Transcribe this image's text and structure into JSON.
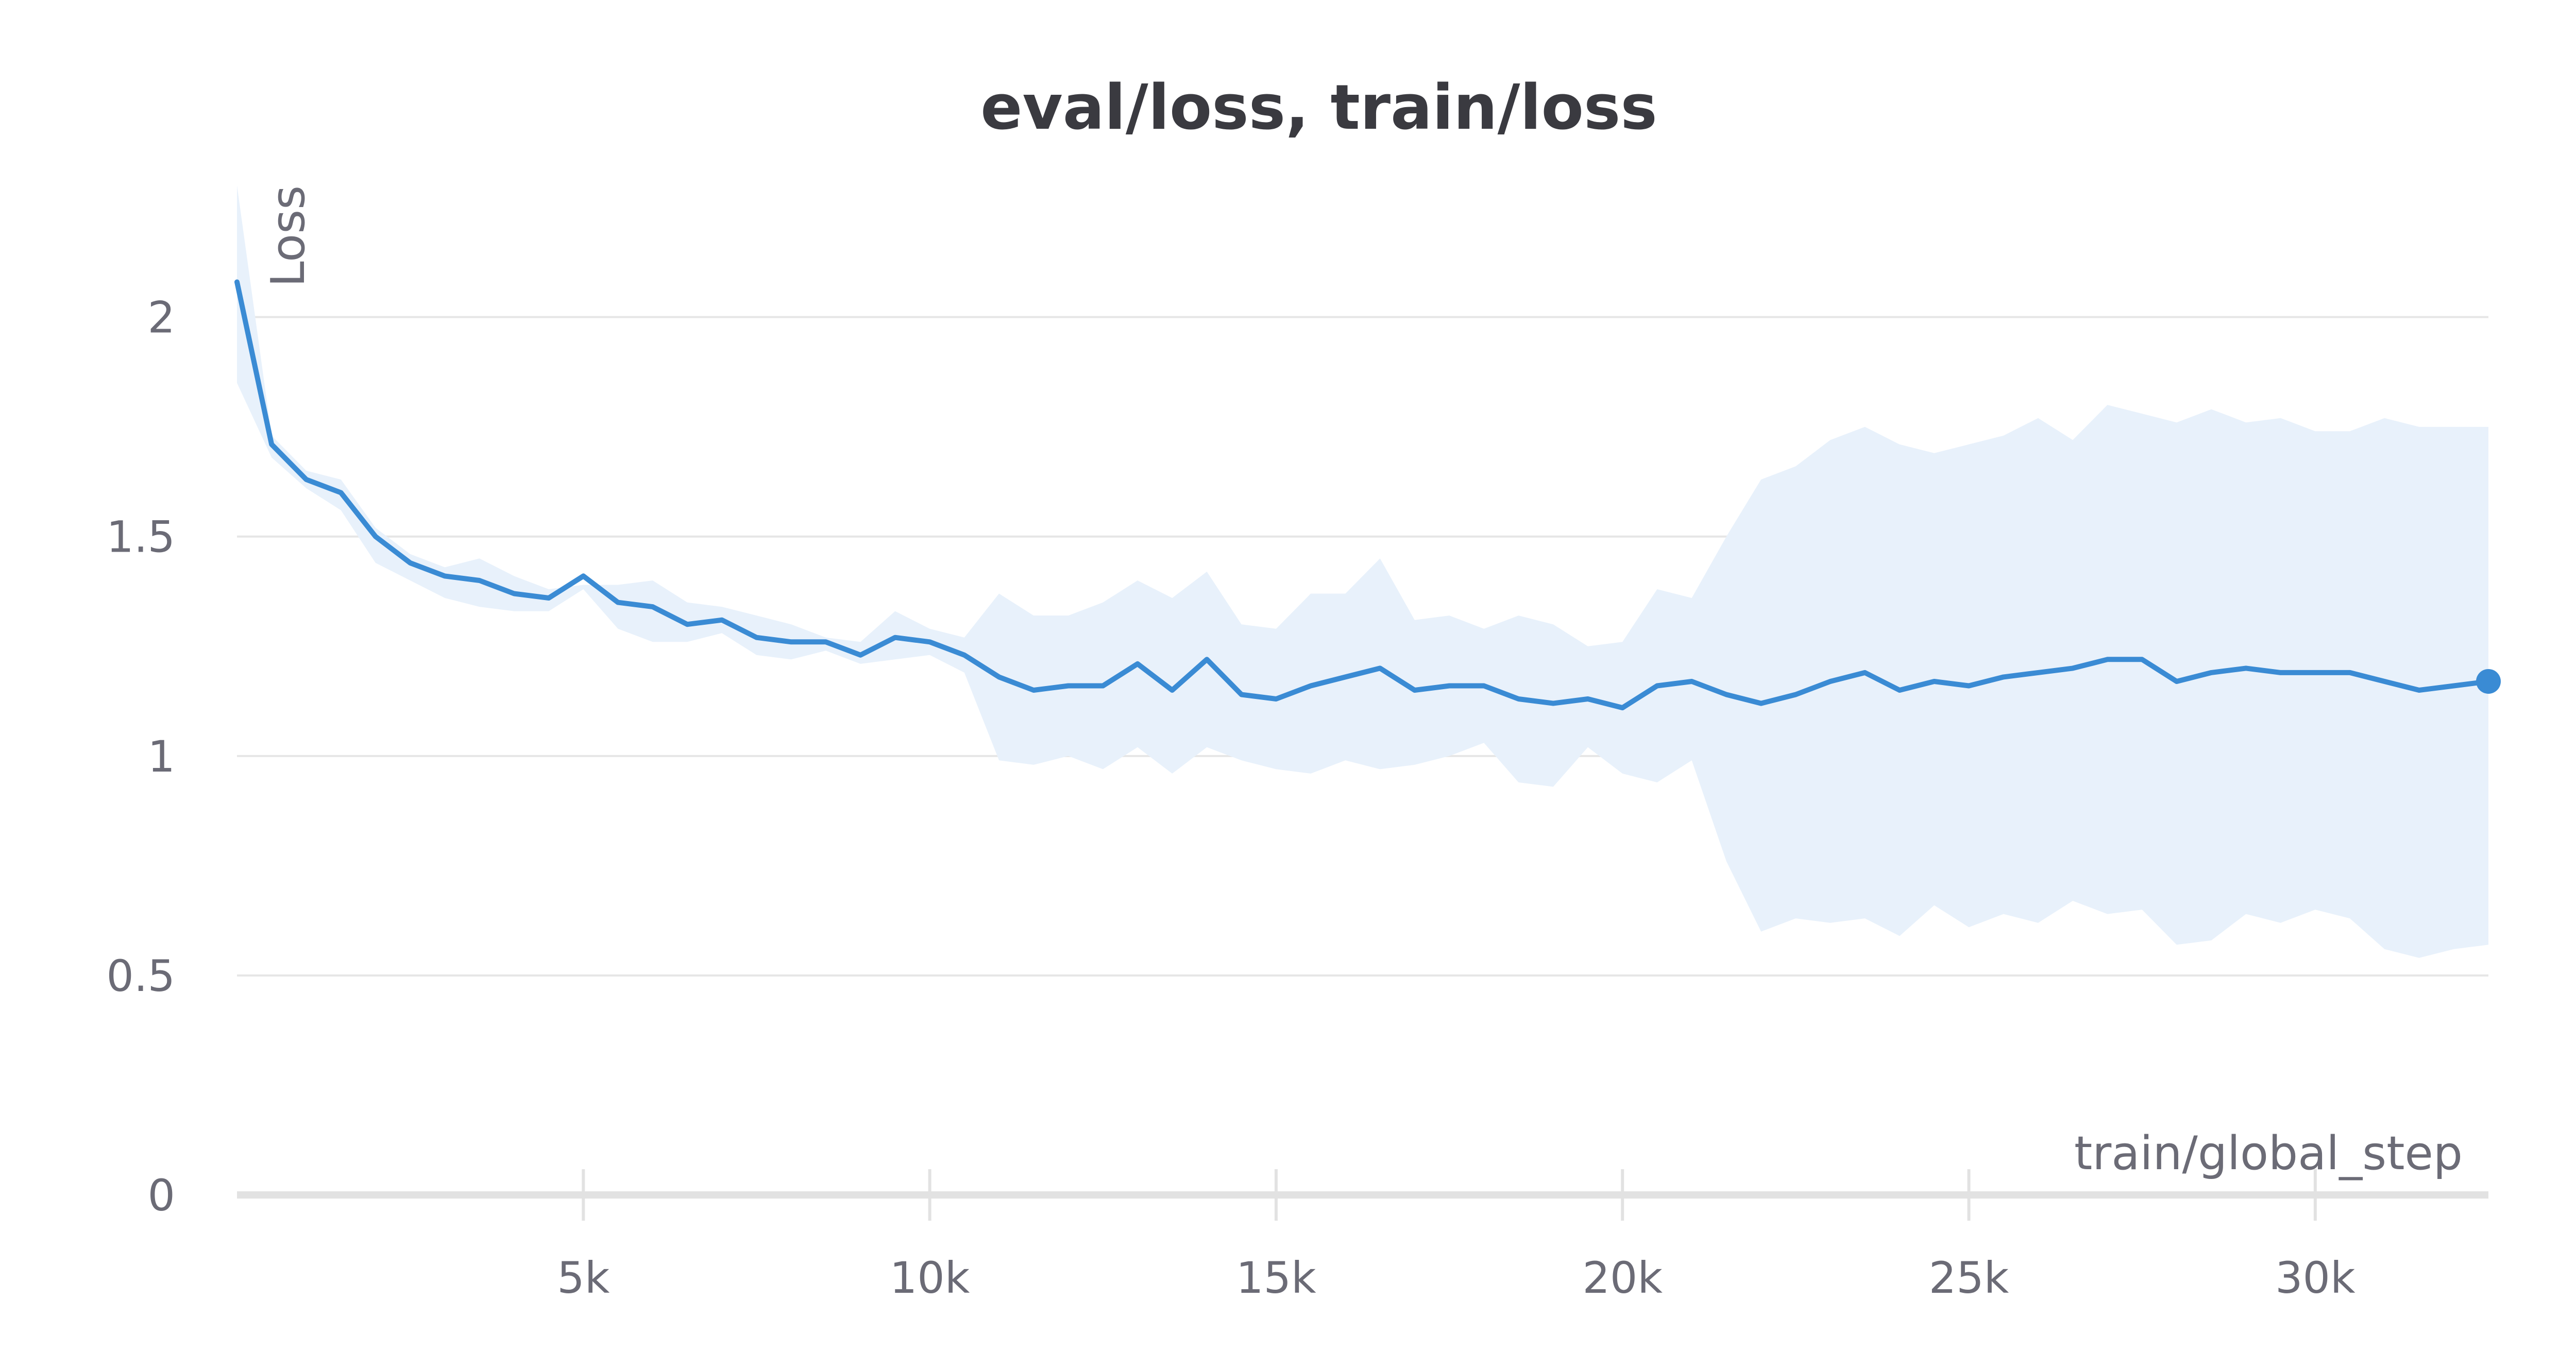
{
  "chart_data": {
    "type": "line",
    "title": "eval/loss, train/loss",
    "xlabel": "train/global_step",
    "ylabel": "Loss",
    "xlim": [
      0,
      32500
    ],
    "ylim": [
      0,
      2.3
    ],
    "x_ticks": [
      5000,
      10000,
      15000,
      20000,
      25000,
      30000
    ],
    "x_tick_labels": [
      "5k",
      "10k",
      "15k",
      "20k",
      "25k",
      "30k"
    ],
    "y_ticks": [
      0,
      0.5,
      1,
      1.5,
      2
    ],
    "y_tick_labels": [
      "0",
      "0.5",
      "1",
      "1.5",
      "2"
    ],
    "grid": true,
    "legend": "none",
    "colors": {
      "line": "#3a8bd4",
      "band": "#e8f1fb",
      "grid": "#e6e6e6",
      "axis": "#e2e2e2"
    },
    "series": [
      {
        "x": [
          0,
          500,
          1000,
          1500,
          2000,
          2500,
          3000,
          3500,
          4000,
          4500,
          5000,
          5500,
          6000,
          6500,
          7000,
          7500,
          8000,
          8500,
          9000,
          9500,
          10000,
          10500,
          11000,
          11500,
          12000,
          12500,
          13000,
          13500,
          14000,
          14500,
          15000,
          15500,
          16000,
          16500,
          17000,
          17500,
          18000,
          18500,
          19000,
          19500,
          20000,
          20500,
          21000,
          21500,
          22000,
          22500,
          23000,
          23500,
          24000,
          24500,
          25000,
          25500,
          26000,
          26500,
          27000,
          27500,
          28000,
          28500,
          29000,
          29500,
          30000,
          30500,
          31000,
          31500,
          32000,
          32500
        ],
        "y": [
          2.08,
          1.71,
          1.63,
          1.6,
          1.5,
          1.44,
          1.41,
          1.4,
          1.37,
          1.36,
          1.41,
          1.35,
          1.34,
          1.3,
          1.31,
          1.27,
          1.26,
          1.26,
          1.23,
          1.27,
          1.26,
          1.23,
          1.18,
          1.15,
          1.16,
          1.16,
          1.21,
          1.15,
          1.22,
          1.14,
          1.13,
          1.16,
          1.18,
          1.2,
          1.15,
          1.16,
          1.16,
          1.13,
          1.12,
          1.13,
          1.11,
          1.16,
          1.17,
          1.14,
          1.12,
          1.14,
          1.17,
          1.19,
          1.15,
          1.17,
          1.16,
          1.18,
          1.19,
          1.2,
          1.22,
          1.22,
          1.17,
          1.19,
          1.2,
          1.19,
          1.19,
          1.19,
          1.17,
          1.15,
          1.16,
          1.17
        ],
        "y_min": [
          1.85,
          1.68,
          1.61,
          1.56,
          1.44,
          1.4,
          1.36,
          1.34,
          1.33,
          1.33,
          1.38,
          1.29,
          1.26,
          1.26,
          1.28,
          1.23,
          1.22,
          1.24,
          1.21,
          1.22,
          1.23,
          1.19,
          0.99,
          0.98,
          1.0,
          0.97,
          1.02,
          0.96,
          1.02,
          0.99,
          0.97,
          0.96,
          0.99,
          0.97,
          0.98,
          1.0,
          1.03,
          0.94,
          0.93,
          1.02,
          0.96,
          0.94,
          0.99,
          0.76,
          0.6,
          0.63,
          0.62,
          0.63,
          0.59,
          0.66,
          0.61,
          0.64,
          0.62,
          0.67,
          0.64,
          0.65,
          0.57,
          0.58,
          0.64,
          0.62,
          0.65,
          0.63,
          0.56,
          0.54,
          0.56,
          0.57
        ],
        "y_max": [
          2.3,
          1.73,
          1.65,
          1.63,
          1.52,
          1.46,
          1.43,
          1.45,
          1.41,
          1.38,
          1.39,
          1.39,
          1.4,
          1.35,
          1.34,
          1.32,
          1.3,
          1.27,
          1.26,
          1.33,
          1.29,
          1.27,
          1.37,
          1.32,
          1.32,
          1.35,
          1.4,
          1.36,
          1.42,
          1.3,
          1.29,
          1.37,
          1.37,
          1.45,
          1.31,
          1.32,
          1.29,
          1.32,
          1.3,
          1.25,
          1.26,
          1.38,
          1.36,
          1.5,
          1.63,
          1.66,
          1.72,
          1.75,
          1.71,
          1.69,
          1.71,
          1.73,
          1.77,
          1.72,
          1.8,
          1.78,
          1.76,
          1.79,
          1.76,
          1.77,
          1.74,
          1.74,
          1.77,
          1.75,
          1.75,
          1.75
        ]
      }
    ]
  }
}
